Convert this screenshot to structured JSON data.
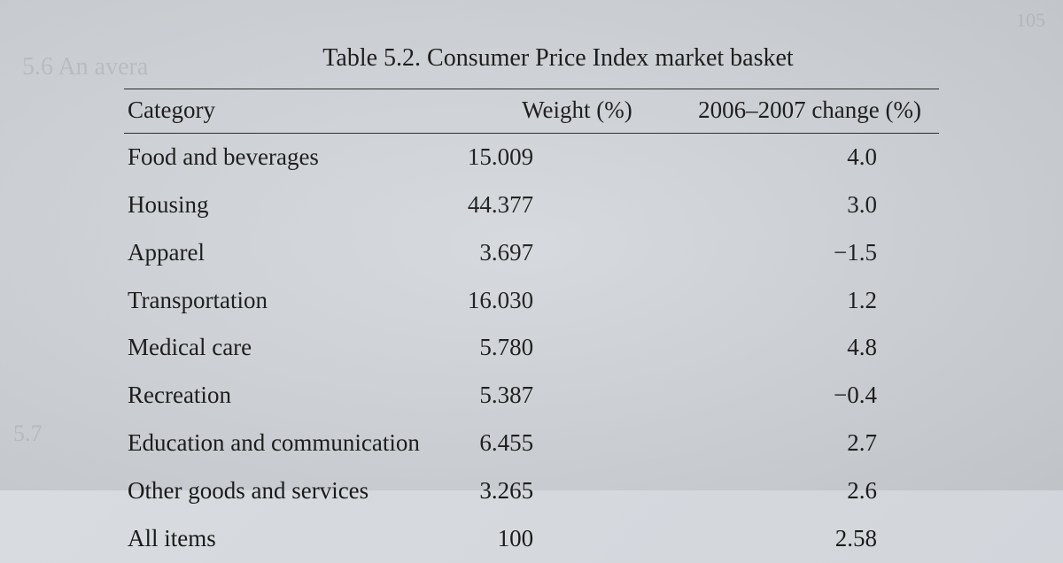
{
  "table": {
    "title": "Table 5.2. Consumer Price Index market basket",
    "columns": {
      "category": "Category",
      "weight": "Weight (%)",
      "change": "2006–2007 change (%)"
    },
    "rows": [
      {
        "category": "Food and beverages",
        "weight": "15.009",
        "change": "4.0"
      },
      {
        "category": "Housing",
        "weight": "44.377",
        "change": "3.0"
      },
      {
        "category": "Apparel",
        "weight": "3.697",
        "change": "−1.5"
      },
      {
        "category": "Transportation",
        "weight": "16.030",
        "change": "1.2"
      },
      {
        "category": "Medical care",
        "weight": "5.780",
        "change": "4.8"
      },
      {
        "category": "Recreation",
        "weight": "5.387",
        "change": "−0.4"
      },
      {
        "category": "Education and communication",
        "weight": "6.455",
        "change": "2.7"
      },
      {
        "category": "Other goods and services",
        "weight": "3.265",
        "change": "2.6"
      },
      {
        "category": "All items",
        "weight": "100",
        "change": "2.58"
      }
    ],
    "styling": {
      "background_color": "#d6dadf",
      "text_color": "#1a1a1a",
      "rule_color": "#2a2a2a",
      "font_family": "Times New Roman",
      "title_fontsize": 28,
      "body_fontsize": 27,
      "row_count": 9,
      "column_align": [
        "left",
        "right",
        "right"
      ]
    }
  },
  "ghost": {
    "g1": "5.6  An avera",
    "g2": "5.7",
    "g3": "105",
    "b1": ""
  }
}
